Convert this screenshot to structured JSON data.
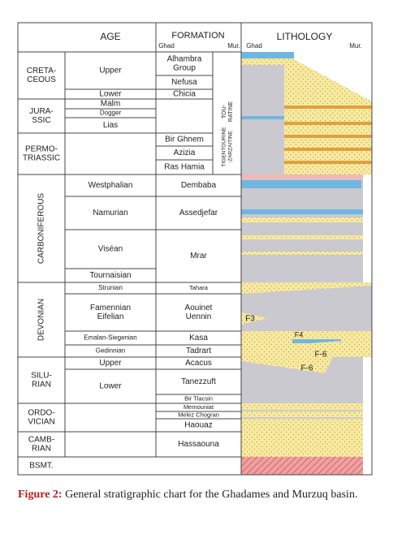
{
  "header": {
    "age": "AGE",
    "formation": "FORMATION",
    "formation_ghad": "Ghad",
    "formation_mur": "Mur.",
    "lithology": "LITHOLOGY",
    "lithology_ghad": "Ghad",
    "lithology_mur": "Mur."
  },
  "systems": [
    [
      "CRETA-",
      "CEOUS"
    ],
    [
      "JURA-",
      "SSIC"
    ],
    [
      "PERMO-",
      "TRIASSIC"
    ],
    [
      "CARBONIFEROUS"
    ],
    [
      "DEVONIAN"
    ],
    [
      "SILU-",
      "RIAN"
    ],
    [
      "ORDO-",
      "VICIAN"
    ],
    [
      "CAMB-",
      "RIAN"
    ],
    [
      "BSMT."
    ]
  ],
  "stages": [
    [
      "Upper"
    ],
    [
      "Lower"
    ],
    [
      "Malm"
    ],
    [
      "Dogger"
    ],
    [
      "Lias"
    ],
    [
      "Westphalian"
    ],
    [
      "Namurian"
    ],
    [
      "Viséan"
    ],
    [
      "Tournaisian"
    ],
    [
      "Strunian"
    ],
    [
      "Famennian",
      "Eifelian"
    ],
    [
      "Emalan-Siegenian"
    ],
    [
      "Gedinnian"
    ],
    [
      "Upper"
    ],
    [
      "Lower"
    ]
  ],
  "formations": [
    [
      "Alhambra",
      "Group"
    ],
    [
      "Nefusa"
    ],
    [
      "Chicia"
    ],
    [
      "Bir Ghnem"
    ],
    [
      "Azizia"
    ],
    [
      "Ras Hamia"
    ],
    [
      "Dembaba"
    ],
    [
      "Assedjefar"
    ],
    [
      "Mrar"
    ],
    [
      "Tahara"
    ],
    [
      "Aouinet",
      "Uennin"
    ],
    [
      "Kasa"
    ],
    [
      "Tadrart"
    ],
    [
      "Acacus"
    ],
    [
      "Tanezzuft"
    ],
    [
      "Bir Tlacsin"
    ],
    [
      "Memouniat"
    ],
    [
      "Melez Chogran"
    ],
    [
      "Haouaz"
    ],
    [
      "Hassaouna"
    ]
  ],
  "murzuq_formations": [
    [
      "TOU-",
      "RATINE"
    ],
    [
      "TIGENTOURINE",
      "-ZARZAITINE"
    ]
  ],
  "lithology_labels": [
    "F3",
    "F4",
    "F-6",
    "F-6"
  ],
  "caption": {
    "label": "Figure 2:",
    "text": "General stratigraphic chart for the Ghadames and Murzuq basin."
  }
}
